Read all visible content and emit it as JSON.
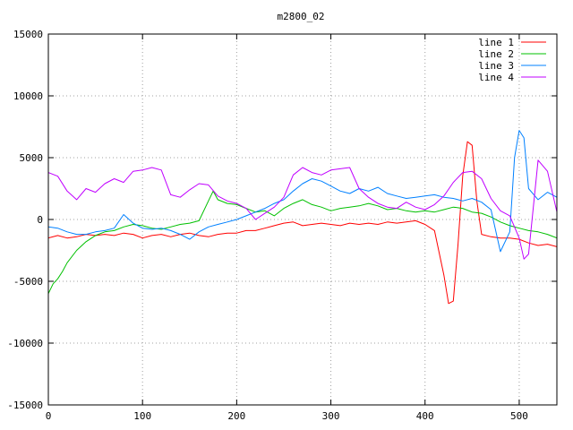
{
  "chart_data": {
    "type": "line",
    "title": "m2800_02",
    "xlabel": "",
    "ylabel": "",
    "xlim": [
      0,
      540
    ],
    "ylim": [
      -15000,
      15000
    ],
    "x_ticks": [
      0,
      100,
      200,
      300,
      400,
      500
    ],
    "y_ticks": [
      -15000,
      -10000,
      -5000,
      0,
      5000,
      10000,
      15000
    ],
    "grid": true,
    "legend_position": "top-right",
    "series": [
      {
        "name": "line 1",
        "color": "#ff0000",
        "x": [
          0,
          10,
          20,
          30,
          40,
          50,
          60,
          70,
          80,
          90,
          100,
          110,
          120,
          130,
          140,
          150,
          160,
          170,
          180,
          190,
          200,
          210,
          220,
          230,
          240,
          250,
          260,
          270,
          280,
          290,
          300,
          310,
          320,
          330,
          340,
          350,
          360,
          370,
          380,
          390,
          400,
          410,
          420,
          425,
          430,
          435,
          440,
          445,
          450,
          455,
          460,
          470,
          480,
          490,
          500,
          510,
          520,
          530,
          540
        ],
        "values": [
          -1500,
          -1300,
          -1500,
          -1400,
          -1200,
          -1300,
          -1200,
          -1300,
          -1100,
          -1200,
          -1500,
          -1300,
          -1200,
          -1400,
          -1200,
          -1100,
          -1300,
          -1400,
          -1200,
          -1100,
          -1100,
          -900,
          -900,
          -700,
          -500,
          -300,
          -200,
          -500,
          -400,
          -300,
          -400,
          -500,
          -300,
          -400,
          -300,
          -400,
          -200,
          -300,
          -200,
          -100,
          -400,
          -900,
          -4500,
          -6800,
          -6600,
          -2000,
          3500,
          6300,
          6000,
          1500,
          -1200,
          -1400,
          -1500,
          -1500,
          -1600,
          -1900,
          -2100,
          -2000,
          -2200
        ]
      },
      {
        "name": "line 2",
        "color": "#00c000",
        "x": [
          0,
          5,
          10,
          15,
          20,
          30,
          40,
          50,
          60,
          70,
          80,
          90,
          100,
          110,
          120,
          130,
          140,
          150,
          160,
          170,
          175,
          180,
          190,
          200,
          210,
          220,
          230,
          240,
          250,
          260,
          270,
          280,
          290,
          300,
          310,
          320,
          330,
          340,
          350,
          360,
          370,
          380,
          390,
          400,
          410,
          420,
          430,
          440,
          450,
          460,
          470,
          480,
          490,
          500,
          510,
          520,
          530,
          540
        ],
        "values": [
          -6000,
          -5200,
          -4800,
          -4200,
          -3500,
          -2500,
          -1800,
          -1300,
          -1000,
          -900,
          -600,
          -400,
          -500,
          -700,
          -800,
          -600,
          -400,
          -300,
          -100,
          1500,
          2300,
          1600,
          1300,
          1200,
          900,
          600,
          700,
          300,
          900,
          1300,
          1600,
          1200,
          1000,
          700,
          900,
          1000,
          1100,
          1300,
          1100,
          800,
          900,
          700,
          600,
          700,
          600,
          800,
          1000,
          900,
          600,
          500,
          200,
          -200,
          -500,
          -700,
          -900,
          -1000,
          -1200,
          -1500
        ]
      },
      {
        "name": "line 3",
        "color": "#0080ff",
        "x": [
          0,
          10,
          20,
          30,
          40,
          50,
          60,
          70,
          80,
          90,
          100,
          110,
          120,
          130,
          140,
          150,
          160,
          170,
          180,
          190,
          200,
          210,
          220,
          230,
          240,
          250,
          260,
          270,
          280,
          290,
          300,
          310,
          320,
          330,
          340,
          350,
          360,
          370,
          380,
          390,
          400,
          410,
          420,
          430,
          440,
          450,
          460,
          470,
          480,
          490,
          495,
          500,
          505,
          510,
          520,
          530,
          540
        ],
        "values": [
          -600,
          -700,
          -1000,
          -1200,
          -1200,
          -1000,
          -900,
          -700,
          400,
          -300,
          -700,
          -800,
          -700,
          -900,
          -1200,
          -1600,
          -1000,
          -600,
          -400,
          -200,
          0,
          300,
          600,
          900,
          1300,
          1600,
          2300,
          2900,
          3300,
          3100,
          2700,
          2300,
          2100,
          2500,
          2300,
          2600,
          2100,
          1900,
          1700,
          1800,
          1900,
          2000,
          1800,
          1700,
          1500,
          1700,
          1400,
          800,
          -2600,
          -1000,
          5000,
          7200,
          6600,
          2500,
          1600,
          2200,
          1800
        ]
      },
      {
        "name": "line 4",
        "color": "#c000ff",
        "x": [
          0,
          10,
          20,
          30,
          40,
          50,
          60,
          70,
          80,
          90,
          100,
          110,
          120,
          130,
          140,
          150,
          160,
          170,
          180,
          190,
          200,
          210,
          220,
          230,
          240,
          250,
          260,
          270,
          280,
          290,
          300,
          310,
          320,
          330,
          340,
          350,
          360,
          370,
          380,
          390,
          400,
          410,
          420,
          430,
          440,
          450,
          460,
          470,
          480,
          490,
          500,
          505,
          510,
          520,
          530,
          540
        ],
        "values": [
          3800,
          3500,
          2300,
          1600,
          2500,
          2200,
          2900,
          3300,
          3000,
          3900,
          4000,
          4200,
          4000,
          2000,
          1800,
          2400,
          2900,
          2800,
          1900,
          1500,
          1300,
          900,
          0,
          500,
          1000,
          1800,
          3600,
          4200,
          3800,
          3600,
          4000,
          4100,
          4200,
          2500,
          1800,
          1300,
          1000,
          900,
          1400,
          1000,
          800,
          1200,
          1900,
          3000,
          3800,
          3900,
          3300,
          1700,
          700,
          300,
          -1500,
          -3200,
          -2800,
          4800,
          3900,
          600
        ]
      }
    ]
  }
}
